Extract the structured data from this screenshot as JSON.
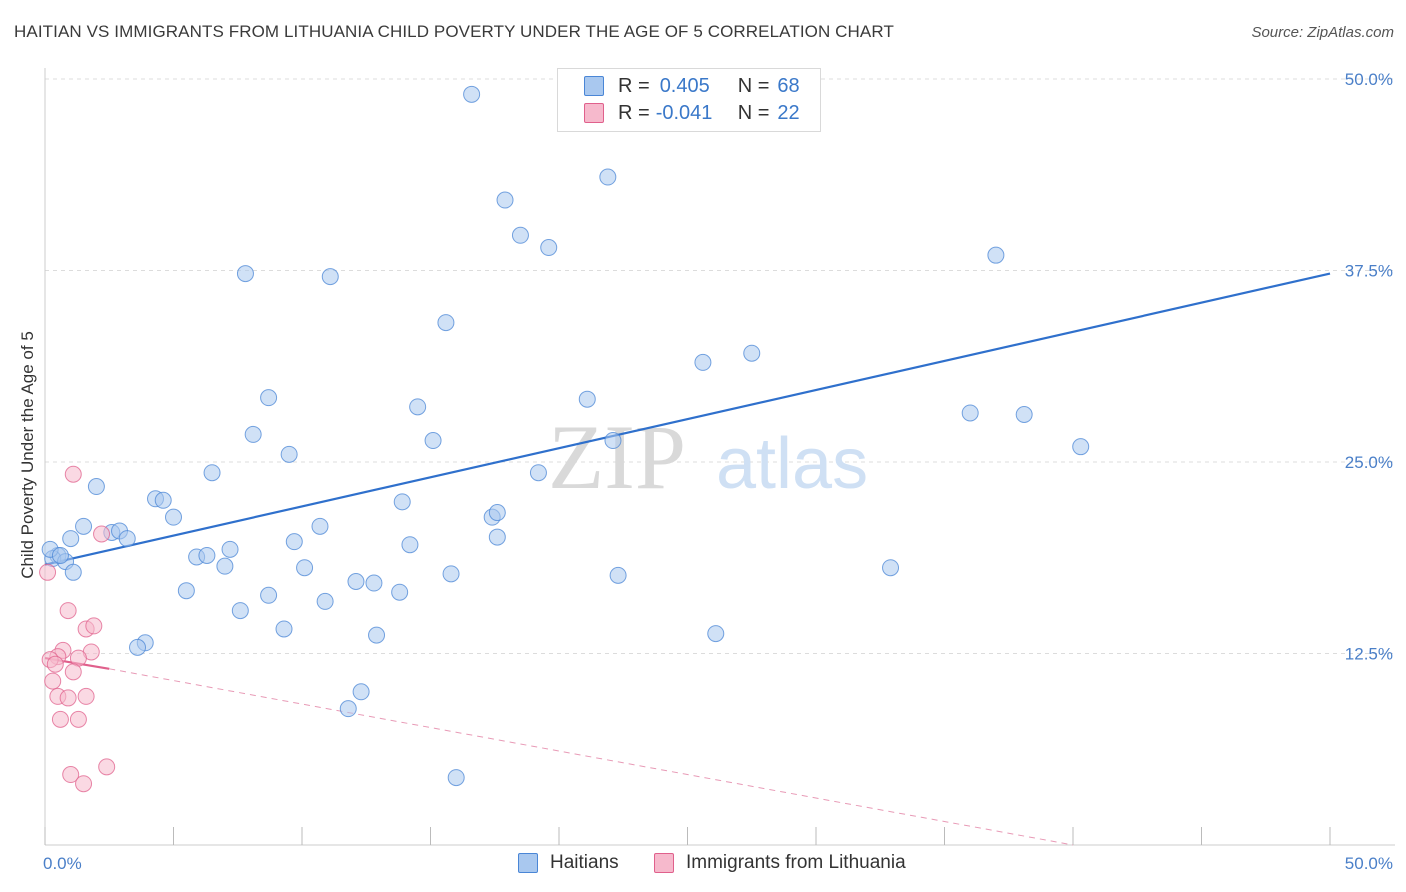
{
  "header": {
    "title": "HAITIAN VS IMMIGRANTS FROM LITHUANIA CHILD POVERTY UNDER THE AGE OF 5 CORRELATION CHART",
    "source": "Source: ZipAtlas.com"
  },
  "watermark": {
    "zip": "ZIP",
    "atlas": "atlas"
  },
  "legend_top": {
    "rows": [
      {
        "r_label": "R =",
        "r_value": "0.405",
        "n_label": "N =",
        "n_value": "68",
        "color": "#a9c8ef"
      },
      {
        "r_label": "R =",
        "r_value": "-0.041",
        "n_label": "N =",
        "n_value": "22",
        "color": "#f6b9cc"
      }
    ]
  },
  "legend_bottom": {
    "items": [
      {
        "label": "Haitians",
        "color": "#a9c8ef"
      },
      {
        "label": "Immigrants from Lithuania",
        "color": "#f6b9cc"
      }
    ]
  },
  "chart_data": {
    "type": "scatter",
    "title": "HAITIAN VS IMMIGRANTS FROM LITHUANIA CHILD POVERTY UNDER THE AGE OF 5 CORRELATION CHART",
    "xlabel": "",
    "ylabel": "Child Poverty Under the Age of 5",
    "xlim": [
      0,
      50
    ],
    "ylim": [
      0,
      50
    ],
    "x_tick_labels": [
      "0.0%",
      "50.0%"
    ],
    "y_tick_labels": [
      "12.5%",
      "25.0%",
      "37.5%",
      "50.0%"
    ],
    "y_tick_values": [
      12.5,
      25,
      37.5,
      50
    ],
    "grid": true,
    "series": [
      {
        "name": "Haitians",
        "color": "#4a86d6",
        "fill": "#a9c8ef",
        "trend": {
          "x": [
            0,
            50
          ],
          "y": [
            18.3,
            37.3
          ],
          "style": "solid"
        },
        "points": [
          [
            16.6,
            49.0
          ],
          [
            17.9,
            42.1
          ],
          [
            18.5,
            39.8
          ],
          [
            19.6,
            39.0
          ],
          [
            21.9,
            43.6
          ],
          [
            37.0,
            38.5
          ],
          [
            7.8,
            37.3
          ],
          [
            11.1,
            37.1
          ],
          [
            15.6,
            34.1
          ],
          [
            25.6,
            31.5
          ],
          [
            27.5,
            32.1
          ],
          [
            36.0,
            28.2
          ],
          [
            38.1,
            28.1
          ],
          [
            40.3,
            26.0
          ],
          [
            8.7,
            29.2
          ],
          [
            14.5,
            28.6
          ],
          [
            21.1,
            29.1
          ],
          [
            22.1,
            26.4
          ],
          [
            15.1,
            26.4
          ],
          [
            8.1,
            26.8
          ],
          [
            9.5,
            25.5
          ],
          [
            6.5,
            24.3
          ],
          [
            19.2,
            24.3
          ],
          [
            2.0,
            23.4
          ],
          [
            4.3,
            22.6
          ],
          [
            4.6,
            22.5
          ],
          [
            5.0,
            21.4
          ],
          [
            13.9,
            22.4
          ],
          [
            17.4,
            21.4
          ],
          [
            17.6,
            21.7
          ],
          [
            1.5,
            20.8
          ],
          [
            10.7,
            20.8
          ],
          [
            2.6,
            20.4
          ],
          [
            2.9,
            20.5
          ],
          [
            3.2,
            20.0
          ],
          [
            1.0,
            20.0
          ],
          [
            9.7,
            19.8
          ],
          [
            14.2,
            19.6
          ],
          [
            17.6,
            20.1
          ],
          [
            7.2,
            19.3
          ],
          [
            5.9,
            18.8
          ],
          [
            6.3,
            18.9
          ],
          [
            0.5,
            18.9
          ],
          [
            0.3,
            18.7
          ],
          [
            0.8,
            18.5
          ],
          [
            7.0,
            18.2
          ],
          [
            10.1,
            18.1
          ],
          [
            15.8,
            17.7
          ],
          [
            22.3,
            17.6
          ],
          [
            32.9,
            18.1
          ],
          [
            1.1,
            17.8
          ],
          [
            12.1,
            17.2
          ],
          [
            12.8,
            17.1
          ],
          [
            5.5,
            16.6
          ],
          [
            8.7,
            16.3
          ],
          [
            10.9,
            15.9
          ],
          [
            13.8,
            16.5
          ],
          [
            7.6,
            15.3
          ],
          [
            9.3,
            14.1
          ],
          [
            12.9,
            13.7
          ],
          [
            3.9,
            13.2
          ],
          [
            3.6,
            12.9
          ],
          [
            26.1,
            13.8
          ],
          [
            12.3,
            10.0
          ],
          [
            11.8,
            8.9
          ],
          [
            16.0,
            4.4
          ],
          [
            0.2,
            19.3
          ],
          [
            0.6,
            18.9
          ]
        ]
      },
      {
        "name": "Immigrants from Lithuania",
        "color": "#e0608c",
        "fill": "#f6b9cc",
        "trend": {
          "x": [
            0,
            2.5,
            40
          ],
          "y": [
            12.2,
            11.5,
            0
          ],
          "style": "solid-then-dashed"
        },
        "points": [
          [
            1.1,
            24.2
          ],
          [
            2.2,
            20.3
          ],
          [
            0.9,
            15.3
          ],
          [
            1.6,
            14.1
          ],
          [
            1.9,
            14.3
          ],
          [
            0.7,
            12.7
          ],
          [
            1.8,
            12.6
          ],
          [
            0.5,
            12.3
          ],
          [
            0.2,
            12.1
          ],
          [
            0.4,
            11.8
          ],
          [
            1.3,
            12.2
          ],
          [
            1.1,
            11.3
          ],
          [
            0.3,
            10.7
          ],
          [
            0.5,
            9.7
          ],
          [
            0.9,
            9.6
          ],
          [
            1.6,
            9.7
          ],
          [
            0.6,
            8.2
          ],
          [
            1.3,
            8.2
          ],
          [
            1.0,
            4.6
          ],
          [
            2.4,
            5.1
          ],
          [
            1.5,
            4.0
          ],
          [
            0.1,
            17.8
          ]
        ]
      }
    ]
  }
}
